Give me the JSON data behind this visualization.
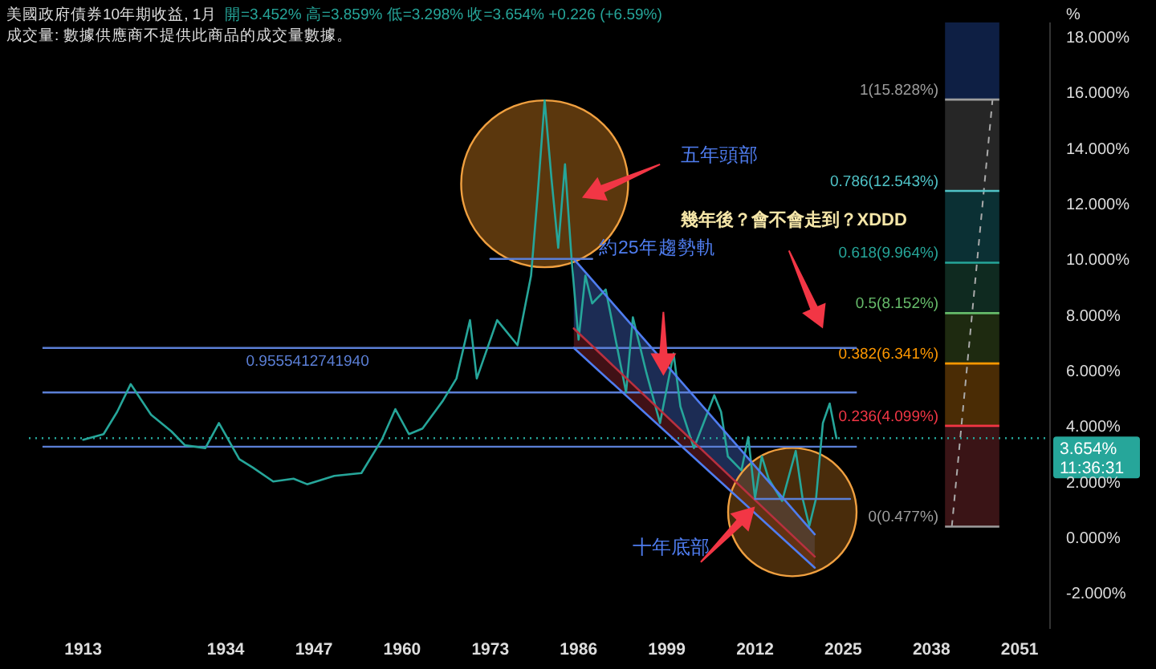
{
  "chart_data": {
    "type": "line",
    "title": "美國政府債券10年期收益, 1月",
    "subtitle": "開=3.452% 高=3.859% 低=3.298% 收=3.654% +0.226 (+6.59%)",
    "ylabel": "%",
    "annotations": [
      "成交量: 數據供應商不提供此商品的成交量數據。",
      "五年頭部",
      "約25年趨勢軌",
      "幾年後？會不會走到？XDDD",
      "十年底部",
      "11:36:31",
      "0.9555412741940"
    ],
    "x": [
      1913,
      1916,
      1918,
      1920,
      1923,
      1926,
      1928,
      1931,
      1933,
      1936,
      1938,
      1941,
      1944,
      1946,
      1950,
      1954,
      1957,
      1959,
      1961,
      1963,
      1966,
      1968,
      1970,
      1971,
      1974,
      1977,
      1979,
      1980,
      1981,
      1982,
      1983,
      1984,
      1985,
      1986,
      1987,
      1988,
      1990,
      1993,
      1994,
      1996,
      1998,
      2000,
      2001,
      2003,
      2006,
      2007,
      2008,
      2010,
      2011,
      2012,
      2013,
      2014,
      2016,
      2018,
      2019,
      2020,
      2021,
      2022,
      2023,
      2024
    ],
    "series": [
      {
        "color": "#26a69a",
        "values": [
          3.6,
          3.8,
          4.6,
          5.6,
          4.5,
          3.9,
          3.4,
          3.3,
          4.2,
          2.9,
          2.6,
          2.1,
          2.2,
          2.0,
          2.3,
          2.4,
          3.6,
          4.7,
          3.8,
          4.0,
          5.0,
          5.8,
          7.9,
          5.8,
          7.9,
          7.0,
          9.5,
          12.5,
          15.8,
          13.0,
          10.5,
          13.5,
          10.0,
          7.2,
          9.5,
          8.5,
          9.0,
          5.3,
          8.0,
          6.0,
          4.2,
          6.7,
          4.8,
          3.3,
          5.2,
          4.6,
          3.0,
          2.5,
          3.7,
          1.5,
          3.0,
          2.2,
          1.4,
          3.2,
          1.5,
          0.5,
          1.5,
          4.2,
          4.9,
          3.654
        ]
      },
      {
        "type": "line",
        "color": "#4f7df0",
        "x": [
          1985.3,
          2020.8
        ],
        "values": [
          10.1,
          0.2
        ],
        "lower": [
          7.6,
          -0.6
        ],
        "upper": [
          10.1,
          0.2
        ]
      },
      {
        "type": "line",
        "color": "#b8303f",
        "x": [
          1985.3,
          2020.8
        ],
        "values": [
          7.6,
          -0.6
        ],
        "lower": [
          6.9,
          -1.0
        ],
        "upper": [
          7.6,
          -0.6
        ]
      },
      {
        "type": "line",
        "color": "#4f7df0",
        "x": [
          1985.3,
          2020.8
        ],
        "values": [
          6.9,
          -1.0
        ]
      },
      {
        "type": "line",
        "color": "#5b7fd6",
        "x": [
          1973,
          1988
        ],
        "values": [
          10.1,
          10.1
        ]
      },
      {
        "type": "line",
        "color": "#5b7fd6",
        "x": [
          2012,
          2026
        ],
        "values": [
          1.47,
          1.47
        ]
      }
    ],
    "xlim": [
      1905,
      2055
    ],
    "xticks": [
      1913,
      1934,
      1947,
      1960,
      1973,
      1986,
      1999,
      2012,
      2025,
      2038,
      2051
    ],
    "ylim": [
      -3.2,
      18.6
    ],
    "yticks": [
      {
        "value": -2,
        "label": "-2.000%"
      },
      {
        "value": 0,
        "label": "0.000%"
      },
      {
        "value": 2,
        "label": "2.000%"
      },
      {
        "value": 4,
        "label": "4.000%"
      },
      {
        "value": 6,
        "label": "6.000%"
      },
      {
        "value": 8,
        "label": "8.000%"
      },
      {
        "value": 10,
        "label": "10.000%"
      },
      {
        "value": 12,
        "label": "12.000%"
      },
      {
        "value": 14,
        "label": "14.000%"
      },
      {
        "value": 16,
        "label": "16.000%"
      },
      {
        "value": 18,
        "label": "18.000%"
      }
    ],
    "ref_lines": [
      {
        "axis": "y",
        "value": 15.828,
        "label": "1(15.828%)",
        "color": "#9e9e9e"
      },
      {
        "axis": "y",
        "value": 12.543,
        "label": "0.786(12.543%)",
        "color": "#4fc3c7"
      },
      {
        "axis": "y",
        "value": 9.964,
        "label": "0.618(9.964%)",
        "color": "#26a69a"
      },
      {
        "axis": "y",
        "value": 8.152,
        "label": "0.5(8.152%)",
        "color": "#66bb6a"
      },
      {
        "axis": "y",
        "value": 6.341,
        "label": "0.382(6.341%)",
        "color": "#ff9800"
      },
      {
        "axis": "y",
        "value": 4.099,
        "label": "0.236(4.099%)",
        "color": "#f23645"
      },
      {
        "axis": "y",
        "value": 0.477,
        "label": "0(0.477%)",
        "color": "#9e9e9e"
      },
      {
        "axis": "y",
        "value": 6.9,
        "color": "#5b7fd6"
      },
      {
        "axis": "y",
        "value": 5.3,
        "color": "#5b7fd6"
      },
      {
        "axis": "y",
        "value": 3.35,
        "color": "#5b7fd6"
      },
      {
        "axis": "y",
        "value": 3.654,
        "label": "3.654%",
        "color": "#26a69a",
        "line_style": "dotted"
      }
    ],
    "bands": [
      {
        "axis": "y",
        "from": 0.477,
        "to": 4.099,
        "color": "#3a1416"
      },
      {
        "axis": "y",
        "from": 4.099,
        "to": 6.341,
        "color": "#4a2c05"
      },
      {
        "axis": "y",
        "from": 6.341,
        "to": 8.152,
        "color": "#1e2a10"
      },
      {
        "axis": "y",
        "from": 8.152,
        "to": 9.964,
        "color": "#0f2a20"
      },
      {
        "axis": "y",
        "from": 9.964,
        "to": 12.543,
        "color": "#0b3034"
      },
      {
        "axis": "y",
        "from": 12.543,
        "to": 15.828,
        "color": "#262626"
      },
      {
        "axis": "y",
        "from": 15.828,
        "to": 18.6,
        "color": "#0e1f44"
      }
    ],
    "grid": false,
    "marker": "none",
    "line_style": "solid"
  }
}
